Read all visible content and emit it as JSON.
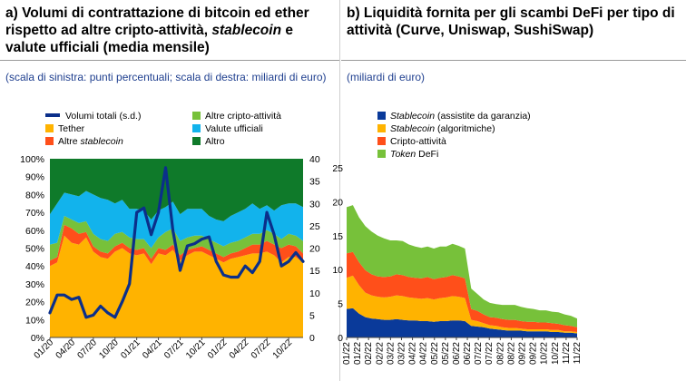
{
  "panel_a": {
    "title_parts": [
      "a) Volumi di contrattazione di bitcoin ed ether rispetto ad altre cripto-attività, ",
      "stablecoin",
      " e valute ufficiali (media mensile)"
    ],
    "note": "(scala di sinistra: punti percentuali; scala di destra: miliardi di euro)",
    "legend": {
      "volumi": "Volumi totali (s.d.)",
      "altre_cripto": "Altre cripto-attività",
      "tether": "Tether",
      "valute": "Valute ufficiali",
      "altre_stable_pre": "Altre ",
      "altre_stable_it": "stablecoin",
      "altro": "Altro"
    }
  },
  "panel_b": {
    "title": "b) Liquidità fornita per gli scambi DeFi per tipo di attività (Curve, Uniswap, SushiSwap)",
    "note": "(miliardi di euro)",
    "legend": [
      {
        "it": "Stablecoin",
        "rest": " (assistite da garanzia)"
      },
      {
        "it": "Stablecoin",
        "rest": " (algoritmiche)"
      },
      {
        "it": "",
        "rest": "Cripto-attività"
      },
      {
        "it": "Token",
        "rest": " DeFi"
      }
    ]
  },
  "colors": {
    "tether": "#FFB300",
    "altre_stable": "#FF4F1A",
    "altre_cripto": "#77C13A",
    "valute": "#12B3EC",
    "altro": "#0F7A2A",
    "volumi": "#0B2F8A",
    "stable_gar": "#0A3A9A"
  },
  "chart_data": [
    {
      "type": "area",
      "x_ticks": [
        "01/20",
        "04/20",
        "07/20",
        "10/20",
        "01/21",
        "04/21",
        "07/21",
        "10/21",
        "01/22",
        "04/22",
        "07/22",
        "10/22"
      ],
      "ylim_left": [
        0,
        100
      ],
      "yticks_left": [
        "0%",
        "10%",
        "20%",
        "30%",
        "40%",
        "50%",
        "60%",
        "70%",
        "80%",
        "90%",
        "100%"
      ],
      "ylim_right": [
        0,
        40
      ],
      "yticks_right": [
        "0",
        "5",
        "10",
        "15",
        "20",
        "25",
        "30",
        "35",
        "40"
      ],
      "series": [
        {
          "name": "Tether",
          "values": [
            40,
            42,
            57,
            53,
            52,
            56,
            48,
            45,
            44,
            48,
            50,
            47,
            46,
            47,
            41,
            47,
            46,
            49,
            43,
            46,
            48,
            48,
            46,
            44,
            42,
            44,
            45,
            46,
            47,
            47,
            48,
            46,
            42,
            45,
            45,
            42
          ]
        },
        {
          "name": "Altre stablecoin",
          "values": [
            3,
            3,
            6,
            8,
            6,
            3,
            3,
            3,
            3,
            3,
            3,
            3,
            3,
            3,
            3,
            3,
            3,
            3,
            3,
            3,
            2,
            3,
            3,
            3,
            3,
            3,
            3,
            4,
            5,
            5,
            6,
            6,
            8,
            7,
            6,
            5
          ]
        },
        {
          "name": "Altre cripto-attività",
          "values": [
            9,
            8,
            5,
            5,
            6,
            6,
            7,
            7,
            7,
            7,
            6,
            6,
            6,
            5,
            6,
            6,
            10,
            9,
            8,
            7,
            7,
            6,
            6,
            6,
            6,
            6,
            6,
            6,
            6,
            6,
            6,
            6,
            5,
            6,
            6,
            7
          ]
        },
        {
          "name": "Valute ufficiali",
          "values": [
            17,
            22,
            13,
            14,
            15,
            17,
            22,
            23,
            23,
            17,
            18,
            16,
            17,
            16,
            16,
            15,
            14,
            15,
            15,
            16,
            15,
            15,
            13,
            13,
            14,
            15,
            16,
            16,
            17,
            14,
            14,
            13,
            19,
            17,
            18,
            19
          ]
        },
        {
          "name": "Altro",
          "values": [
            31,
            25,
            19,
            20,
            21,
            18,
            20,
            22,
            23,
            25,
            23,
            28,
            28,
            29,
            34,
            29,
            27,
            24,
            31,
            28,
            28,
            28,
            32,
            34,
            35,
            32,
            30,
            28,
            25,
            28,
            26,
            29,
            26,
            25,
            25,
            27
          ]
        }
      ],
      "line_series": {
        "name": "Volumi totali (s.d.)",
        "values": [
          5.5,
          9.5,
          9.5,
          8.5,
          9,
          4.5,
          5,
          7,
          5.5,
          4.5,
          8,
          12,
          28,
          29,
          23,
          28,
          38,
          24,
          15,
          20.5,
          21,
          22,
          22.5,
          17,
          14,
          13.5,
          13.5,
          16,
          14.5,
          17,
          28,
          23,
          16,
          17,
          19,
          17
        ]
      }
    },
    {
      "type": "area",
      "x_ticks": [
        "01/22",
        "01/22",
        "02/22",
        "02/22",
        "03/22",
        "03/22",
        "04/22",
        "04/22",
        "05/22",
        "05/22",
        "06/22",
        "06/22",
        "07/22",
        "07/22",
        "08/22",
        "08/22",
        "09/22",
        "09/22",
        "10/22",
        "10/22",
        "11/22",
        "11/22"
      ],
      "ylim": [
        0,
        25
      ],
      "yticks": [
        "0",
        "5",
        "10",
        "15",
        "20",
        "25"
      ],
      "series": [
        {
          "name": "Stablecoin (assistite da garanzia)",
          "values": [
            4.2,
            4.3,
            3.5,
            3.0,
            2.8,
            2.7,
            2.6,
            2.6,
            2.7,
            2.6,
            2.5,
            2.5,
            2.4,
            2.4,
            2.3,
            2.4,
            2.4,
            2.5,
            2.5,
            2.4,
            1.7,
            1.6,
            1.5,
            1.3,
            1.2,
            1.1,
            1.0,
            1.0,
            1.0,
            0.9,
            0.9,
            0.9,
            0.9,
            0.8,
            0.8,
            0.7,
            0.7,
            0.6
          ]
        },
        {
          "name": "Stablecoin (algoritmiche)",
          "values": [
            4.6,
            4.8,
            4.2,
            3.6,
            3.4,
            3.3,
            3.3,
            3.4,
            3.5,
            3.5,
            3.4,
            3.3,
            3.3,
            3.4,
            3.3,
            3.4,
            3.5,
            3.6,
            3.5,
            3.4,
            0.9,
            0.8,
            0.6,
            0.5,
            0.5,
            0.4,
            0.4,
            0.4,
            0.3,
            0.3,
            0.3,
            0.3,
            0.3,
            0.3,
            0.3,
            0.2,
            0.2,
            0.2
          ]
        },
        {
          "name": "Cripto-attività",
          "values": [
            3.6,
            3.5,
            3.4,
            3.3,
            3.1,
            3.0,
            3.0,
            3.0,
            3.1,
            3.1,
            3.0,
            3.0,
            3.0,
            3.1,
            3.0,
            3.0,
            3.0,
            3.1,
            3.0,
            2.9,
            1.6,
            1.5,
            1.3,
            1.2,
            1.2,
            1.2,
            1.2,
            1.2,
            1.1,
            1.1,
            1.1,
            1.0,
            1.0,
            1.0,
            0.9,
            0.9,
            0.8,
            0.7
          ]
        },
        {
          "name": "Token DeFi",
          "values": [
            6.8,
            6.9,
            6.6,
            6.5,
            6.3,
            6.0,
            5.7,
            5.3,
            5.0,
            5.0,
            4.8,
            4.6,
            4.5,
            4.5,
            4.5,
            4.6,
            4.5,
            4.6,
            4.5,
            4.4,
            3.0,
            2.5,
            2.2,
            2.1,
            2.0,
            2.1,
            2.2,
            2.2,
            2.1,
            2.0,
            1.9,
            1.8,
            1.8,
            1.7,
            1.7,
            1.6,
            1.5,
            1.3
          ]
        }
      ]
    }
  ]
}
